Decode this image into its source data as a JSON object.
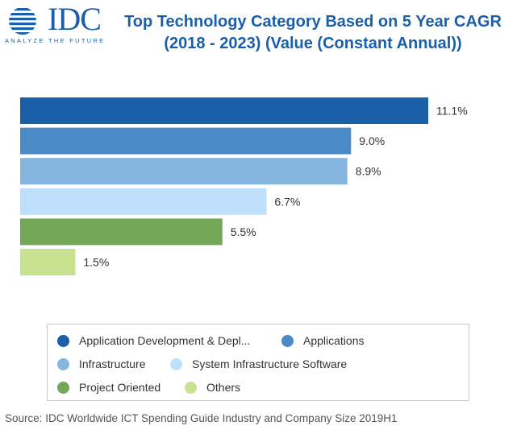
{
  "logo": {
    "text": "IDC",
    "tagline": "ANALYZE THE FUTURE",
    "icon": "globe-icon",
    "color": "#1b5fa8"
  },
  "title": {
    "line1": "Top Technology Category Based on 5 Year CAGR",
    "line2": "(2018 - 2023) (Value (Constant Annual))"
  },
  "chart_data": {
    "type": "bar",
    "orientation": "horizontal",
    "categories": [
      "Application Development & Depl...",
      "Applications",
      "Infrastructure",
      "System Infrastructure Software",
      "Project Oriented",
      "Others"
    ],
    "values": [
      11.1,
      9.0,
      8.9,
      6.7,
      5.5,
      1.5
    ],
    "value_labels": [
      "11.1%",
      "9.0%",
      "8.9%",
      "6.7%",
      "5.5%",
      "1.5%"
    ],
    "unit": "%",
    "colors": [
      "#1b5fa8",
      "#4a8ac6",
      "#86b6e0",
      "#bfe0fa",
      "#72a857",
      "#c9e28f"
    ],
    "xlim": [
      0,
      11.1
    ],
    "grid": false,
    "legend_position": "bottom"
  },
  "legend": {
    "items": [
      {
        "label": "Application Development & Depl...",
        "color": "#1b5fa8"
      },
      {
        "label": "Applications",
        "color": "#4a8ac6"
      },
      {
        "label": "Infrastructure",
        "color": "#86b6e0"
      },
      {
        "label": "System Infrastructure Software",
        "color": "#bfe0fa"
      },
      {
        "label": "Project Oriented",
        "color": "#72a857"
      },
      {
        "label": "Others",
        "color": "#c9e28f"
      }
    ]
  },
  "source": "Source: IDC Worldwide ICT Spending Guide Industry and Company Size 2019H1"
}
